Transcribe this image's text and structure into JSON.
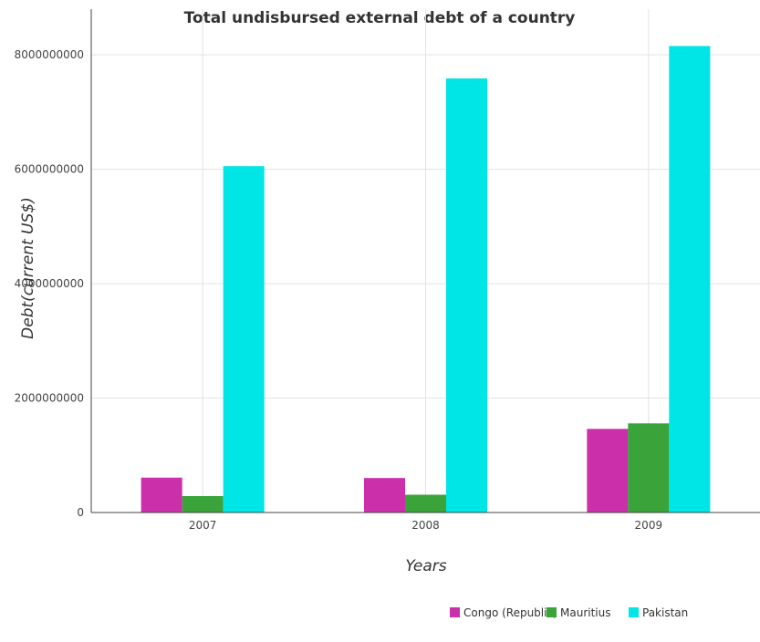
{
  "chart_data": {
    "type": "bar",
    "title": "Total undisbursed external debt of a country",
    "xlabel": "Years",
    "ylabel": "Debt(current US$)",
    "categories": [
      "2007",
      "2008",
      "2009"
    ],
    "ylim": [
      0,
      8800000000
    ],
    "yticks": [
      0,
      2000000000,
      4000000000,
      6000000000,
      8000000000
    ],
    "ytick_labels": [
      "0",
      "2000000000",
      "4000000000",
      "6000000000",
      "8000000000"
    ],
    "grid": true,
    "legend_position": "bottom-right",
    "series": [
      {
        "name": "Congo (Republic)",
        "color": "#cc2faa",
        "values": [
          610000000,
          603000000,
          1462000000
        ]
      },
      {
        "name": "Mauritius",
        "color": "#3aa33a",
        "values": [
          287000000,
          311000000,
          1558000000
        ]
      },
      {
        "name": "Pakistan",
        "color": "#00e5e5",
        "values": [
          6055000000,
          7588000000,
          8155000000
        ]
      }
    ]
  }
}
